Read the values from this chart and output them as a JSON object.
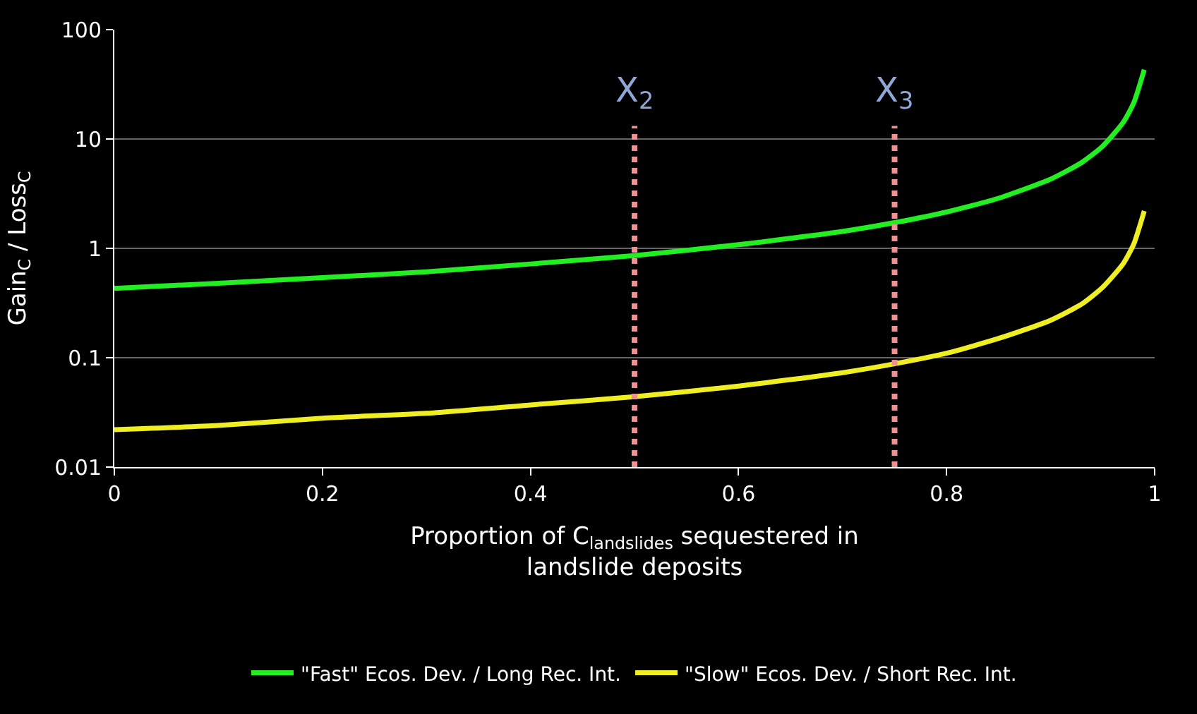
{
  "chart_data": {
    "type": "line",
    "xlabel": "Proportion of C$_{landslides}$ sequestered in\nlandslide deposits",
    "ylabel": "Gain$_{C}$ / Loss$_{C}$",
    "x": [
      0,
      0.1,
      0.2,
      0.3,
      0.4,
      0.5,
      0.6,
      0.7,
      0.75,
      0.8,
      0.85,
      0.9,
      0.93,
      0.95,
      0.97,
      0.98,
      0.99
    ],
    "series": [
      {
        "name": "\"Fast\" Ecos. Dev. / Long Rec. Int.",
        "color": "#22ee22",
        "values": [
          0.43,
          0.48,
          0.54,
          0.61,
          0.72,
          0.86,
          1.08,
          1.43,
          1.72,
          2.15,
          2.87,
          4.3,
          6.1,
          8.6,
          14.3,
          21.5,
          43
        ]
      },
      {
        "name": "\"Slow\" Ecos. Dev. / Short Rec. Int.",
        "color": "#eeee22",
        "values": [
          0.022,
          0.024,
          0.028,
          0.031,
          0.037,
          0.044,
          0.055,
          0.073,
          0.088,
          0.11,
          0.15,
          0.22,
          0.31,
          0.44,
          0.73,
          1.1,
          2.2
        ]
      }
    ],
    "log": "y",
    "xlim": [
      0,
      1
    ],
    "xticks": [
      0,
      0.2,
      0.4,
      0.6,
      0.8,
      1
    ],
    "ylim": [
      0.01,
      100
    ],
    "yticks": [
      0.01,
      0.1,
      1,
      10,
      100
    ],
    "ref_lines": [
      {
        "axis": "x",
        "value": 0.5,
        "label": "X$_{2}$",
        "color": "#f09090",
        "line_style": "dotted"
      },
      {
        "axis": "x",
        "value": 0.75,
        "label": "X$_{3}$",
        "color": "#f09090",
        "line_style": "dotted"
      }
    ],
    "grid": "y",
    "legend": "bottom",
    "marker": "none",
    "line_style": "solid"
  }
}
